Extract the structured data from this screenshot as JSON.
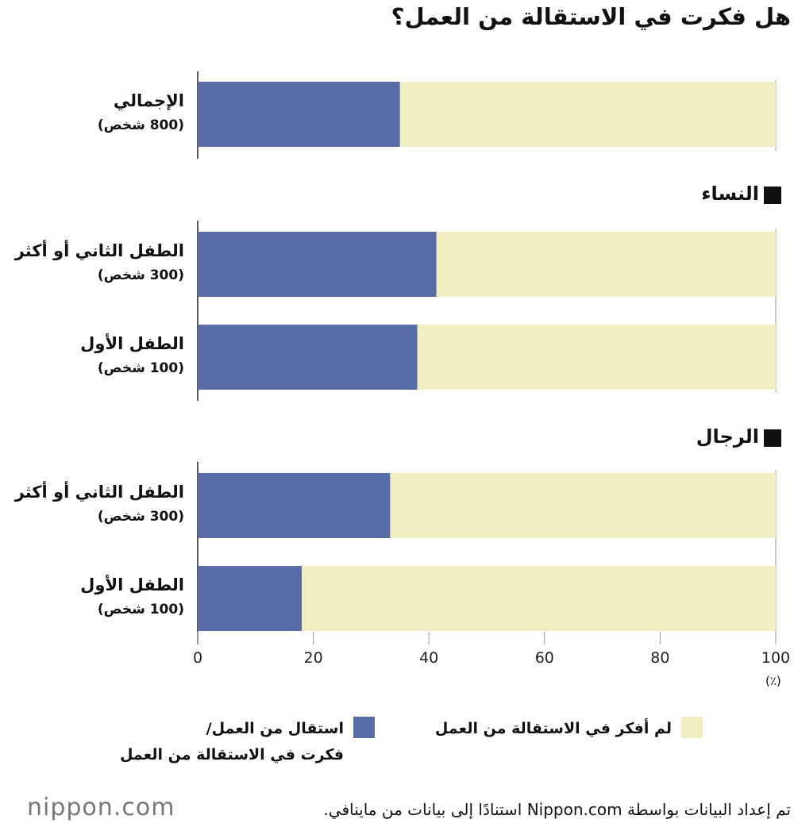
{
  "chart_data": {
    "type": "stacked-barh",
    "title": "هل فكرت في الاستقالة من العمل؟",
    "categories": [
      "الإجمالي",
      "الطفل الثاني أو أكثر",
      "الطفل الأول",
      "الطفل الثاني أو أكثر",
      "الطفل الأول"
    ],
    "sub_labels": [
      "(800 شخص)",
      "(300 شخص)",
      "(100 شخص)",
      "(300 شخص)",
      "(100 شخص)"
    ],
    "section_headers": [
      "النساء",
      "الرجال"
    ],
    "series": [
      {
        "name": "استقال من العمل/\nفكرت في الاستقالة من العمل",
        "color": "#5a6ca8",
        "values": [
          35,
          41.3,
          38,
          33.3,
          18
        ]
      },
      {
        "name": "لم أفكر في الاستقالة من العمل",
        "color": "#f2eec4",
        "values": [
          65,
          58.7,
          62,
          66.7,
          82
        ]
      }
    ],
    "xlim": [
      0,
      100
    ],
    "xticks": [
      0,
      20,
      40,
      60,
      80,
      100
    ],
    "x_unit": "(٪)",
    "source": "تم إعداد البيانات بواسطة Nippon.com استنادًا إلى بيانات من ماينافي.",
    "logo": "nippon.com"
  }
}
